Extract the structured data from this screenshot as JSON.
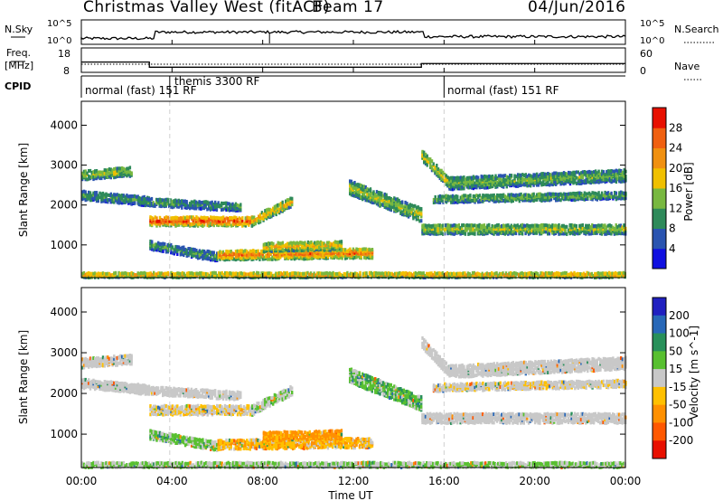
{
  "header": {
    "title": "Christmas Valley West (fitACF)",
    "beam": "Beam 17",
    "date": "04/Jun/2016"
  },
  "top_panels": {
    "nsky": {
      "label": "N.Sky",
      "tick_labels_left": [
        "10^5",
        "10^0"
      ],
      "right_label": "N.Search",
      "tick_labels_right": [
        "10^5",
        "10^0"
      ]
    },
    "freq": {
      "label_line1": "Freq.",
      "label_line2": "[MHz]",
      "tick_labels_left": [
        "18",
        "8"
      ],
      "right_label": "Nave",
      "tick_labels_right": [
        "60",
        "0"
      ]
    },
    "cpid": {
      "label": "CPID",
      "segments": [
        "normal (fast) 151 RF",
        "themis 3300 RF",
        "normal (fast) 151 RF"
      ]
    }
  },
  "time_axis": {
    "label": "Time UT",
    "ticks": [
      "00:00",
      "04:00",
      "08:00",
      "12:00",
      "16:00",
      "20:00",
      "00:00"
    ]
  },
  "range_axis": {
    "label": "Slant Range [km]",
    "ticks": [
      "1000",
      "2000",
      "3000",
      "4000"
    ]
  },
  "power_colorbar": {
    "label": "Power [dB]",
    "ticks": [
      "4",
      "8",
      "12",
      "16",
      "20",
      "24",
      "28"
    ],
    "colors": [
      "#1010e0",
      "#2a54b0",
      "#2e8a5a",
      "#78b840",
      "#f0c000",
      "#f09010",
      "#f06010",
      "#e81000"
    ]
  },
  "velocity_colorbar": {
    "label": "Velocity [m s^-1]",
    "ticks": [
      "200",
      "100",
      "50",
      "15",
      "-15",
      "-50",
      "-100",
      "-200"
    ],
    "colors": [
      "#2020c0",
      "#2868b8",
      "#28905a",
      "#58c030",
      "#c8c8c8",
      "#ffc000",
      "#ff9000",
      "#ff5800",
      "#e81000"
    ]
  },
  "chart_data": {
    "type": "heatmap",
    "x_unit": "hours UT",
    "xlim": [
      0,
      24
    ],
    "ylim": [
      180,
      4600
    ],
    "freq_mhz": [
      {
        "start": 0,
        "end": 3,
        "value": 12.2
      },
      {
        "start": 3,
        "end": 15,
        "value": 10.1
      },
      {
        "start": 15,
        "end": 24,
        "value": 11.6
      }
    ],
    "cpid_changes": [
      3.9,
      16.0
    ],
    "scatter_bands": [
      {
        "name": "band-a",
        "start": 0,
        "end": 2.2,
        "r0": 2800,
        "r1": 2900,
        "width": 230,
        "power": 14,
        "velocity": 0
      },
      {
        "name": "band-b",
        "start": 0,
        "end": 3,
        "r0": 2300,
        "r1": 2150,
        "width": 220,
        "power": 10,
        "velocity": 0
      },
      {
        "name": "band-c",
        "start": 3,
        "end": 7.5,
        "r0": 1650,
        "r1": 1650,
        "width": 230,
        "power": 24,
        "velocity": -10
      },
      {
        "name": "band-d",
        "start": 7.5,
        "end": 9.3,
        "r0": 1650,
        "r1": 2150,
        "width": 240,
        "power": 18,
        "velocity": 10
      },
      {
        "name": "band-e",
        "start": 2.5,
        "end": 7,
        "r0": 2150,
        "r1": 2000,
        "width": 200,
        "power": 10,
        "velocity": 0
      },
      {
        "name": "band-f",
        "start": 3,
        "end": 6,
        "r0": 1050,
        "r1": 750,
        "width": 220,
        "power": 10,
        "velocity": 20
      },
      {
        "name": "band-g",
        "start": 6,
        "end": 12.8,
        "r0": 800,
        "r1": 850,
        "width": 240,
        "power": 22,
        "velocity": -25
      },
      {
        "name": "band-h",
        "start": 8,
        "end": 11.5,
        "r0": 1000,
        "r1": 1050,
        "width": 220,
        "power": 18,
        "velocity": -40
      },
      {
        "name": "band-i",
        "start": 11.8,
        "end": 15,
        "r0": 2500,
        "r1": 1800,
        "width": 350,
        "power": 14,
        "velocity": 25
      },
      {
        "name": "band-j",
        "start": 15,
        "end": 16.2,
        "r0": 3300,
        "r1": 2600,
        "width": 260,
        "power": 16,
        "velocity": 0
      },
      {
        "name": "band-k",
        "start": 16.2,
        "end": 24,
        "r0": 2600,
        "r1": 2800,
        "width": 300,
        "power": 12,
        "velocity": 0
      },
      {
        "name": "band-l",
        "start": 15,
        "end": 24,
        "r0": 1450,
        "r1": 1450,
        "width": 240,
        "power": 14,
        "velocity": 0
      },
      {
        "name": "band-m",
        "start": 15.5,
        "end": 24,
        "r0": 2200,
        "r1": 2300,
        "width": 180,
        "power": 12,
        "velocity": -5
      },
      {
        "name": "band-n",
        "start": 0,
        "end": 24,
        "r0": 300,
        "r1": 300,
        "width": 120,
        "power": 18,
        "velocity": 15
      }
    ]
  }
}
